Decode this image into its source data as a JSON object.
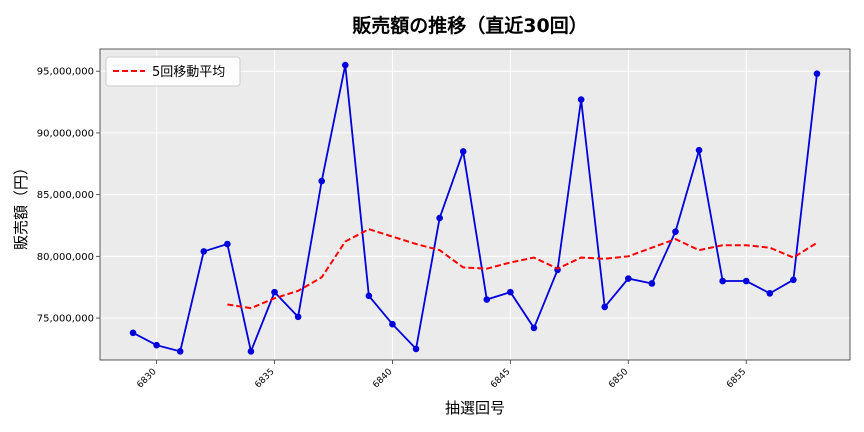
{
  "chart_data": {
    "type": "line",
    "title": "販売額の推移（直近30回）",
    "xlabel": "抽選回号",
    "ylabel": "販売額（円）",
    "x": [
      6829,
      6830,
      6831,
      6832,
      6833,
      6834,
      6835,
      6836,
      6837,
      6838,
      6839,
      6840,
      6841,
      6842,
      6843,
      6844,
      6845,
      6846,
      6847,
      6848,
      6849,
      6850,
      6851,
      6852,
      6853,
      6854,
      6855,
      6856,
      6857,
      6858
    ],
    "xticks": [
      6830,
      6835,
      6840,
      6845,
      6850,
      6855
    ],
    "xtick_labels": [
      "6830",
      "6835",
      "6840",
      "6845",
      "6850",
      "6855"
    ],
    "yticks": [
      75000000,
      80000000,
      85000000,
      90000000,
      95000000
    ],
    "ytick_labels": [
      "75,000,000",
      "80,000,000",
      "85,000,000",
      "90,000,000",
      "95,000,000"
    ],
    "xlim": [
      6827.6,
      6859.4
    ],
    "ylim": [
      71600000,
      96800000
    ],
    "grid": true,
    "legend_position": "top-left",
    "series": [
      {
        "name": "",
        "color": "#0000dd",
        "style": "solid-with-markers",
        "values": [
          73800000,
          72800000,
          72300000,
          80400000,
          81000000,
          72300000,
          77100000,
          75100000,
          86100000,
          95500000,
          76800000,
          74500000,
          72500000,
          83100000,
          88500000,
          76500000,
          77100000,
          74200000,
          78900000,
          92700000,
          75900000,
          78200000,
          77800000,
          82000000,
          88600000,
          78000000,
          78000000,
          77000000,
          78100000,
          94800000
        ]
      },
      {
        "name": "5回移動平均",
        "color": "#ff0000",
        "style": "dashed",
        "values": [
          null,
          null,
          null,
          null,
          76100000,
          75800000,
          76600000,
          77200000,
          78300000,
          81200000,
          82200000,
          81600000,
          81000000,
          80500000,
          79100000,
          79000000,
          79500000,
          79900000,
          79000000,
          79900000,
          79800000,
          80000000,
          80700000,
          81400000,
          80500000,
          80900000,
          80900000,
          80700000,
          79900000,
          81100000
        ]
      }
    ]
  }
}
